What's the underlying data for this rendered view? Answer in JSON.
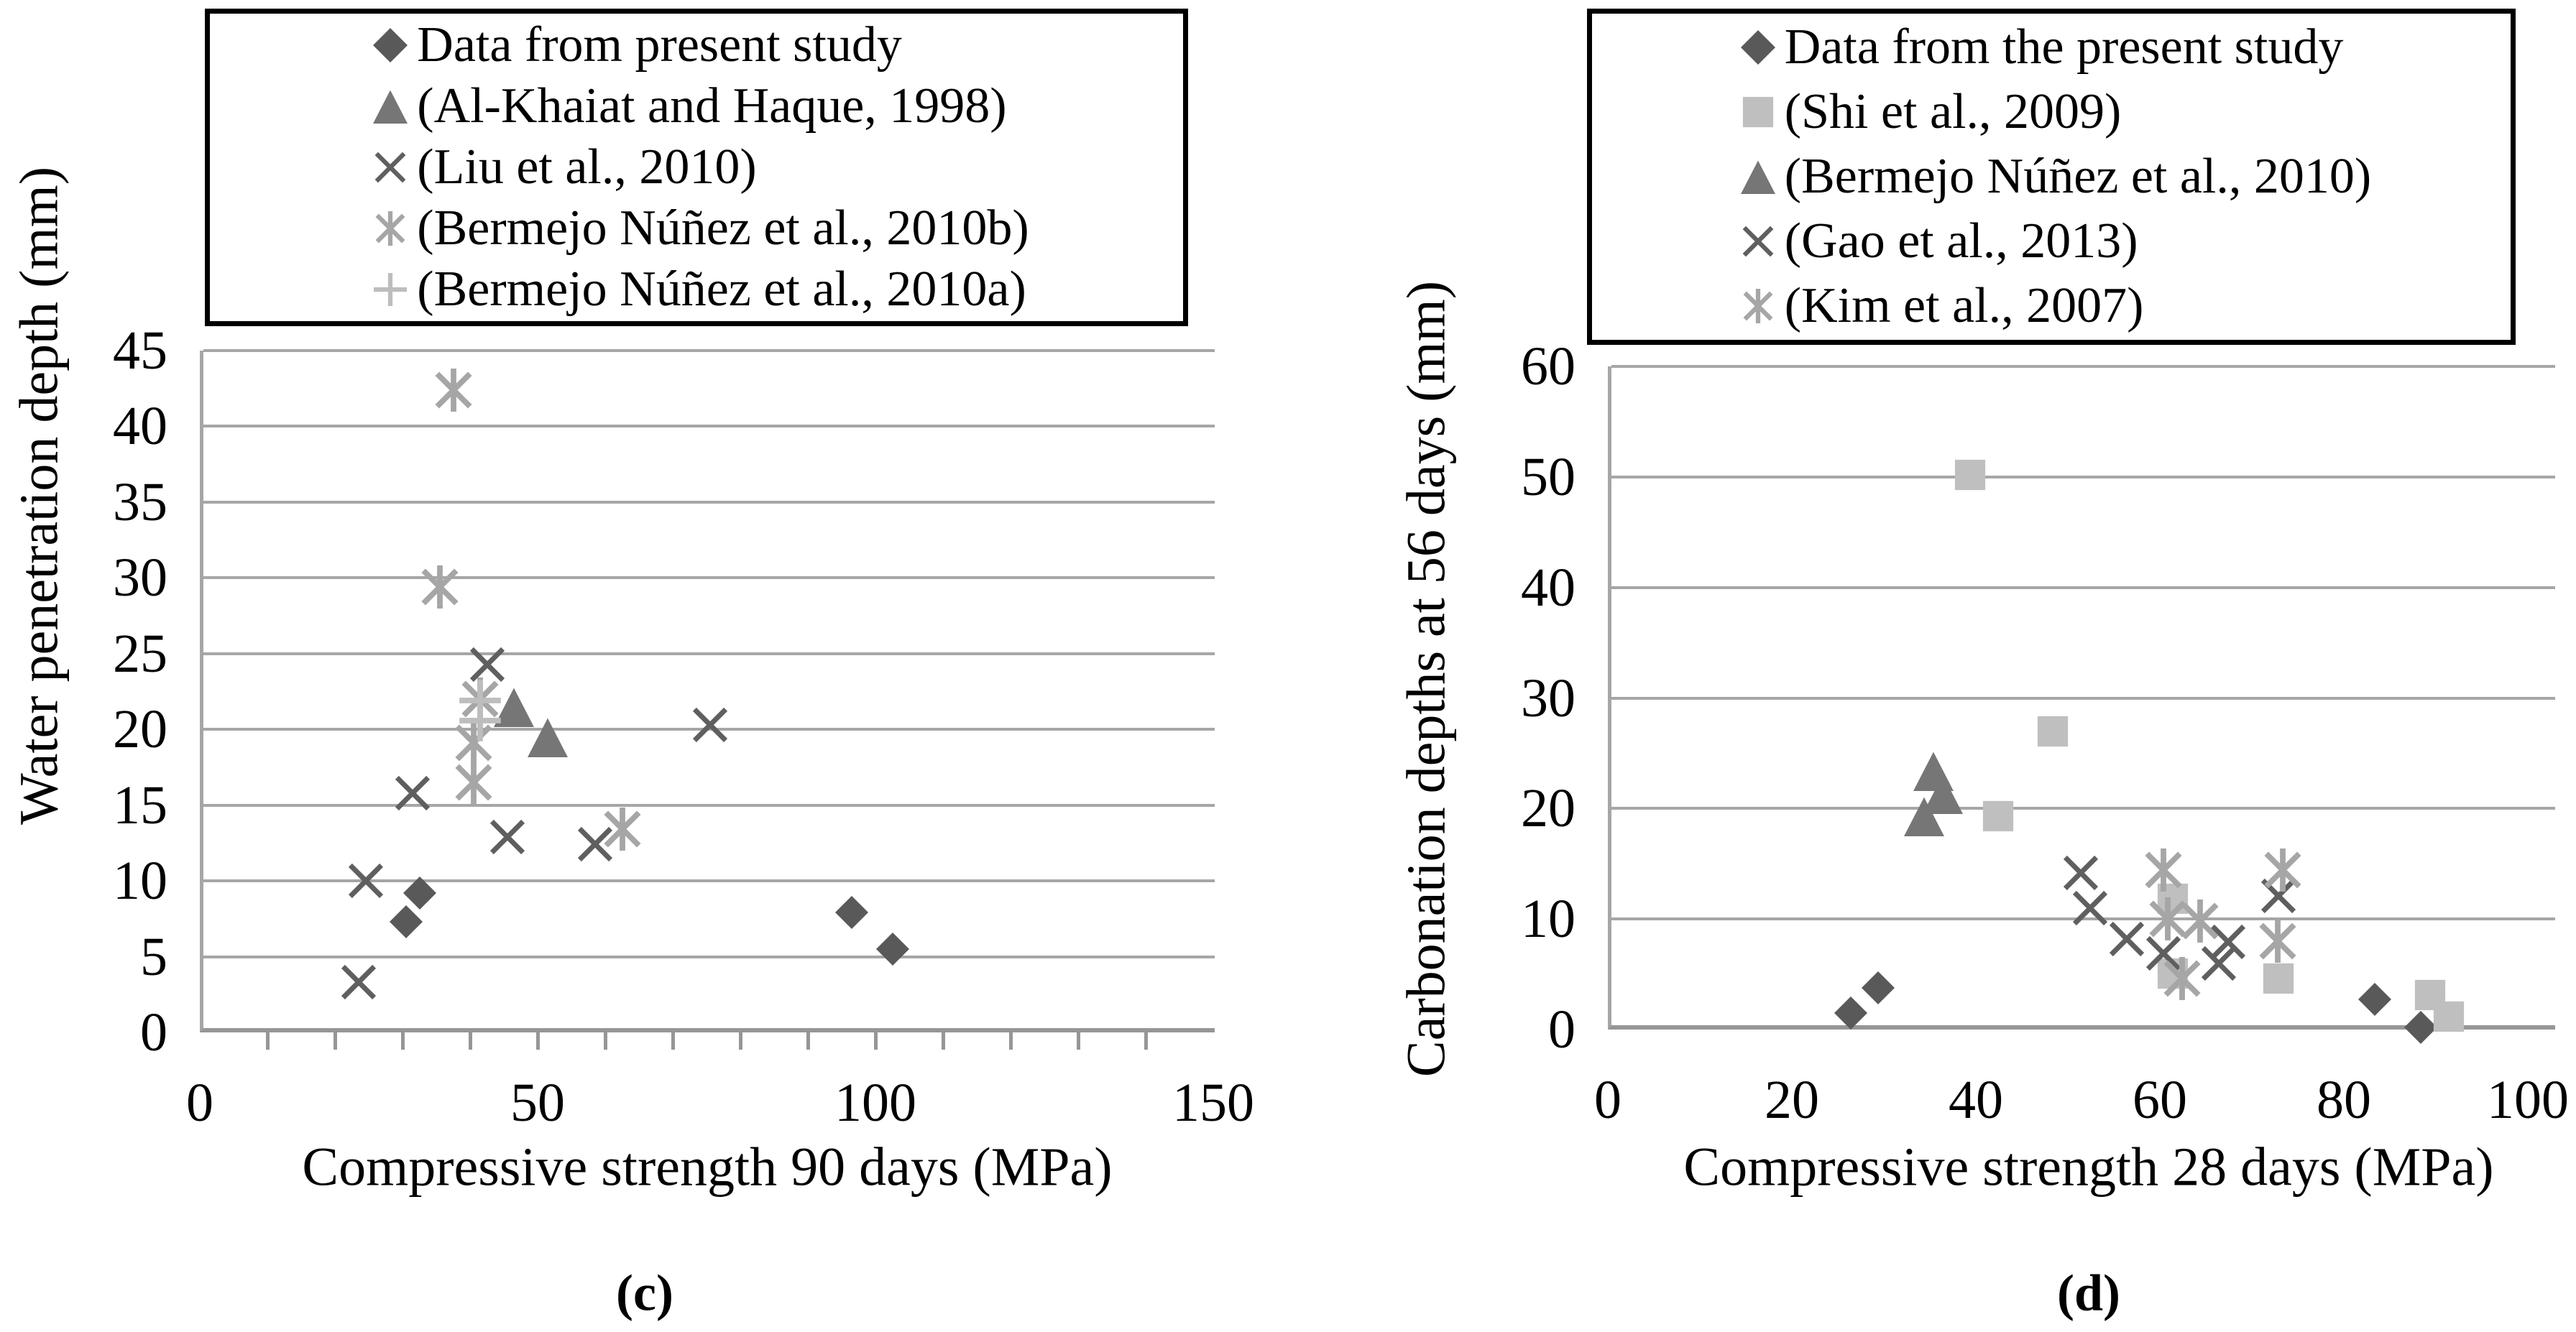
{
  "page": {
    "background": "#ffffff"
  },
  "chart_data": [
    {
      "type": "scatter",
      "panel_label": "(c)",
      "xlabel": "Compressive strength 90 days (MPa)",
      "ylabel": "Water penetration depth (mm)",
      "xlim": [
        0,
        150
      ],
      "ylim": [
        0,
        45
      ],
      "xticks": [
        0,
        50,
        100,
        150
      ],
      "yticks": [
        0,
        5,
        10,
        15,
        20,
        25,
        30,
        35,
        40,
        45
      ],
      "x_minor_tick_step": 10,
      "grid": "horizontal",
      "legend_position": "top",
      "grid_color": "#a6a6a6",
      "axis_color": "#969696",
      "series": [
        {
          "name": "Data from present study",
          "marker": "diamond",
          "color": "#595959",
          "points": [
            [
              30,
              7.3
            ],
            [
              32,
              9.2
            ],
            [
              96,
              7.9
            ],
            [
              102,
              5.5
            ]
          ]
        },
        {
          "name": "(Al-Khaiat and Haque, 1998)",
          "marker": "triangle",
          "color": "#767676",
          "points": [
            [
              46,
              21.5
            ],
            [
              51,
              19.5
            ]
          ]
        },
        {
          "name": "(Liu et al., 2010)",
          "marker": "x",
          "color": "#5f5f5f",
          "points": [
            [
              23,
              3.3
            ],
            [
              24,
              10
            ],
            [
              31,
              15.8
            ],
            [
              42,
              24.3
            ],
            [
              45,
              12.9
            ],
            [
              58,
              12.4
            ],
            [
              75,
              20.3
            ]
          ]
        },
        {
          "name": "(Bermejo Núñez et al., 2010b)",
          "marker": "asterisk",
          "color": "#a6a6a6",
          "points": [
            [
              37,
              42.4
            ],
            [
              35,
              29.4
            ],
            [
              41,
              22
            ],
            [
              40,
              19.1
            ],
            [
              40,
              16.5
            ],
            [
              62,
              13.4
            ]
          ]
        },
        {
          "name": "(Bermejo Núñez et al., 2010a)",
          "marker": "plus",
          "color": "#bdbdbd",
          "points": [
            [
              41,
              21.9
            ],
            [
              41,
              20.6
            ]
          ]
        }
      ]
    },
    {
      "type": "scatter",
      "panel_label": "(d)",
      "xlabel": "Compressive strength 28 days (MPa)",
      "ylabel": "Carbonation depths at 56 days (mm)",
      "xlim": [
        0,
        100
      ],
      "ylim": [
        0,
        60
      ],
      "xticks": [
        0,
        20,
        40,
        60,
        80,
        100
      ],
      "yticks": [
        0,
        10,
        20,
        30,
        40,
        50,
        60
      ],
      "x_minor_tick_step": 0,
      "grid": "horizontal",
      "legend_position": "top",
      "grid_color": "#a6a6a6",
      "axis_color": "#969696",
      "series": [
        {
          "name": "Data from the present study",
          "marker": "diamond",
          "color": "#595959",
          "points": [
            [
              26,
              1.5
            ],
            [
              29,
              3.8
            ],
            [
              83,
              2.7
            ],
            [
              88,
              0.2
            ]
          ]
        },
        {
          "name": "(Shi et al., 2009)",
          "marker": "square",
          "color": "#bfbfbf",
          "points": [
            [
              39,
              50.2
            ],
            [
              42,
              19.3
            ],
            [
              48,
              27
            ],
            [
              61,
              11.8
            ],
            [
              61,
              5.1
            ],
            [
              72.5,
              4.6
            ],
            [
              89,
              3.1
            ],
            [
              91,
              1.2
            ]
          ]
        },
        {
          "name": "(Bermejo Núñez et al., 2010)",
          "marker": "triangle",
          "color": "#767676",
          "points": [
            [
              34,
              19.3
            ],
            [
              35,
              23.4
            ],
            [
              36,
              21.3
            ]
          ]
        },
        {
          "name": "(Gao et al., 2013)",
          "marker": "x",
          "color": "#5f5f5f",
          "points": [
            [
              51,
              14.2
            ],
            [
              52,
              11
            ],
            [
              56,
              8.2
            ],
            [
              60,
              6.9
            ],
            [
              66,
              6
            ],
            [
              67,
              7.9
            ],
            [
              72.5,
              12.1
            ]
          ]
        },
        {
          "name": "(Kim et al., 2007)",
          "marker": "asterisk",
          "color": "#a6a6a6",
          "points": [
            [
              60,
              14.4
            ],
            [
              60.5,
              10
            ],
            [
              64,
              9.8
            ],
            [
              62,
              4.6
            ],
            [
              72.4,
              8
            ],
            [
              73,
              14.4
            ]
          ]
        }
      ]
    }
  ]
}
